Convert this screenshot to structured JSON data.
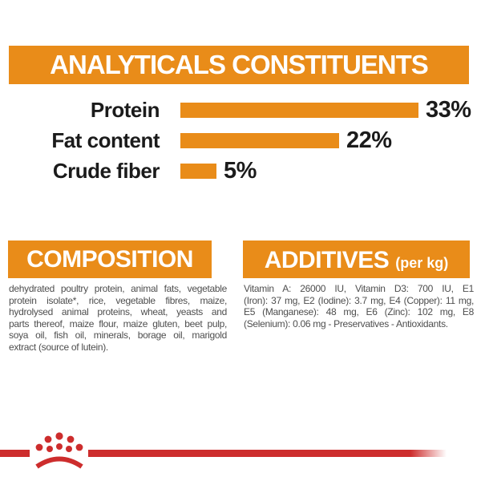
{
  "colors": {
    "orange": "#E98C19",
    "red": "#CD2D2D",
    "banner_text": "#FFFFFF",
    "chart_text": "#1B1B1B",
    "body_text": "#4E4E4E"
  },
  "header": {
    "title": "ANALYTICALS CONSTITUENTS"
  },
  "chart_data": {
    "type": "bar",
    "orientation": "horizontal",
    "title": "ANALYTICALS CONSTITUENTS",
    "categories": [
      "Protein",
      "Fat content",
      "Crude fiber"
    ],
    "values": [
      33,
      22,
      5
    ],
    "value_labels": [
      "33%",
      "22%",
      "5%"
    ],
    "unit": "percent",
    "xlim": [
      0,
      40
    ],
    "bar_color": "#E98C19",
    "grid": false,
    "legend": false
  },
  "composition": {
    "title": "COMPOSITION",
    "lines": [
      "dehydrated poultry protein, animal fats, vegetable",
      "protein isolate*, rice, vegetable fibres, maize,",
      "hydrolysed animal proteins, wheat, yeasts and",
      "parts thereof, maize flour, maize gluten, beet pulp,",
      "soya oil, fish oil, minerals, borage oil, marigold",
      "extract (source of lutein)."
    ]
  },
  "additives": {
    "title": "ADDITIVES",
    "title_suffix": "(per kg)",
    "lines": [
      "Vitamin A: 26000 IU, Vitamin D3: 700 IU, E1",
      "(Iron): 37 mg, E2 (Iodine): 3.7 mg, E4 (Copper): 11 mg,",
      "E5 (Manganese): 48 mg, E6 (Zinc): 102 mg, E8",
      "(Selenium): 0.06 mg - Preservatives - Antioxidants."
    ]
  },
  "footer": {
    "logo": "royal-canin-crown-logo"
  }
}
